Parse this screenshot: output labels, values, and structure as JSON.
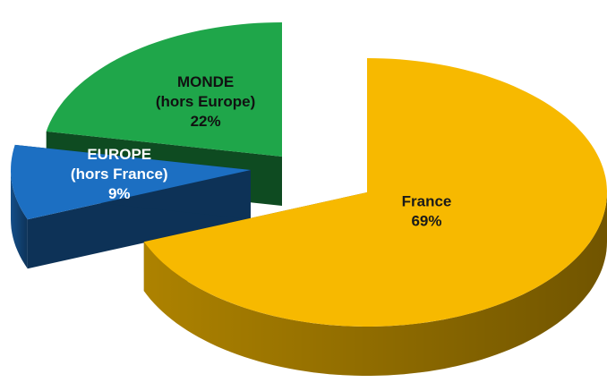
{
  "chart_data": {
    "type": "pie",
    "categories": [
      "France",
      "EUROPE\n(hors France)",
      "MONDE\n(hors Europe)"
    ],
    "values": [
      69,
      9,
      22
    ],
    "value_labels": [
      "69%",
      "9%",
      "22%"
    ],
    "colors": [
      "#f7b900",
      "#1c6fc2",
      "#1fa64a"
    ]
  }
}
